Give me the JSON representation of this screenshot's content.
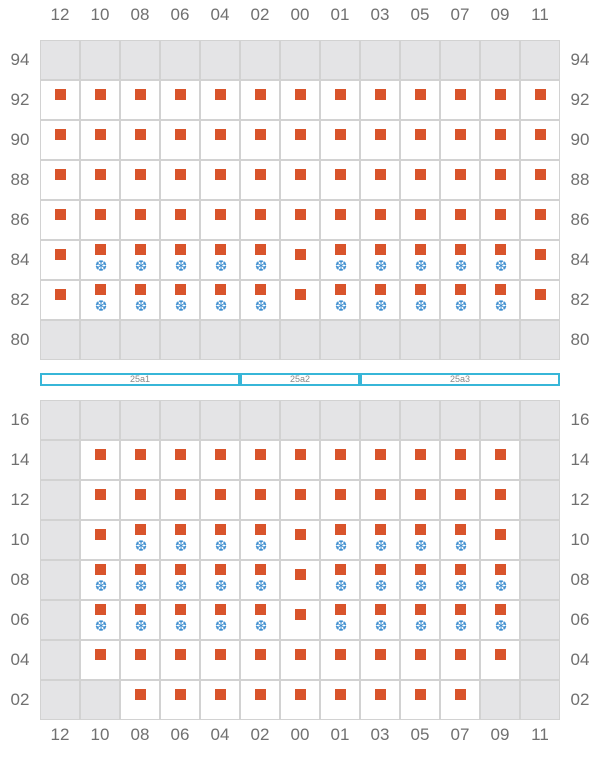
{
  "columns": [
    "12",
    "10",
    "08",
    "06",
    "04",
    "02",
    "00",
    "01",
    "03",
    "05",
    "07",
    "09",
    "11"
  ],
  "segments": [
    {
      "label": "25a1",
      "from": 0,
      "to": 5
    },
    {
      "label": "25a2",
      "from": 5,
      "to": 8
    },
    {
      "label": "25a3",
      "from": 8,
      "to": 13
    }
  ],
  "colors": {
    "unit": "#d9542b",
    "cooling": "#3f8fd0",
    "blocked": "#e4e4e6",
    "segment_border": "#37b6d8"
  },
  "icons": {
    "unit": "square-marker-icon",
    "cooling": "snowflake-icon"
  },
  "upper_block": {
    "rows": [
      {
        "label": "94",
        "blocked": "all",
        "units": "",
        "cooling": ""
      },
      {
        "label": "92",
        "blocked": "",
        "units": "all",
        "cooling": ""
      },
      {
        "label": "90",
        "blocked": "",
        "units": "all",
        "cooling": ""
      },
      {
        "label": "88",
        "blocked": "",
        "units": "all",
        "cooling": ""
      },
      {
        "label": "86",
        "blocked": "",
        "units": "all",
        "cooling": ""
      },
      {
        "label": "84",
        "blocked": "",
        "units": "all",
        "cooling": "10,08,06,04,02,01,03,05,07,09"
      },
      {
        "label": "82",
        "blocked": "",
        "units": "all",
        "cooling": "10,08,06,04,02,01,03,05,07,09"
      },
      {
        "label": "80",
        "blocked": "all",
        "units": "",
        "cooling": ""
      }
    ]
  },
  "lower_block": {
    "rows": [
      {
        "label": "16",
        "blocked": "all",
        "units": "",
        "cooling": ""
      },
      {
        "label": "14",
        "blocked": "12,11",
        "units": "10,08,06,04,02,00,01,03,05,07,09",
        "cooling": ""
      },
      {
        "label": "12",
        "blocked": "12,11",
        "units": "10,08,06,04,02,00,01,03,05,07,09",
        "cooling": ""
      },
      {
        "label": "10",
        "blocked": "12,11",
        "units": "10,08,06,04,02,00,01,03,05,07,09",
        "cooling": "08,06,04,02,01,03,05,07"
      },
      {
        "label": "08",
        "blocked": "12,11",
        "units": "10,08,06,04,02,00,01,03,05,07,09",
        "cooling": "10,08,06,04,02,01,03,05,07,09"
      },
      {
        "label": "06",
        "blocked": "12,11",
        "units": "10,08,06,04,02,00,01,03,05,07,09",
        "cooling": "10,08,06,04,02,01,03,05,07,09"
      },
      {
        "label": "04",
        "blocked": "12,11",
        "units": "10,08,06,04,02,00,01,03,05,07,09",
        "cooling": ""
      },
      {
        "label": "02",
        "blocked": "12,10,09,11",
        "units": "08,06,04,02,00,01,03,05,07",
        "cooling": ""
      }
    ]
  }
}
